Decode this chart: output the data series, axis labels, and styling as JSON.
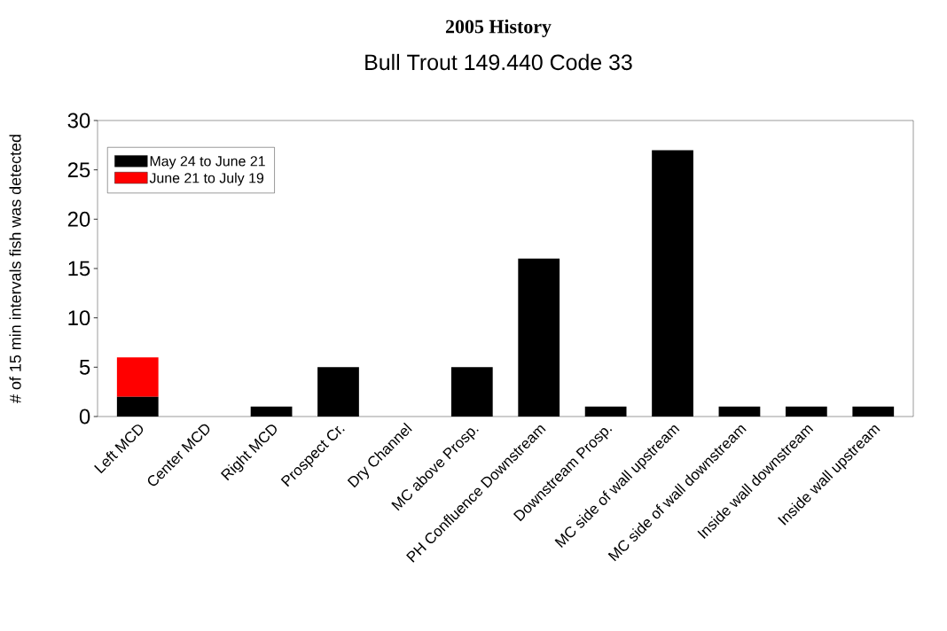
{
  "chart_data": {
    "type": "bar",
    "title": "2005 History",
    "subtitle": "Bull Trout 149.440 Code 33",
    "ylabel": "# of 15 min intervals fish was detected",
    "categories": [
      "Left MCD",
      "Center MCD",
      "Right MCD",
      "Prospect Cr.",
      "Dry Channel",
      "MC above Prosp.",
      "PH Confluence Downstream",
      "Downstream Prosp.",
      "MC side of wall upstream",
      "MC side of wall downstream",
      "Inside wall downstream",
      "Inside wall upstream"
    ],
    "series": [
      {
        "name": "May 24 to June 21",
        "color": "#000000",
        "values": [
          2,
          0,
          1,
          5,
          0,
          5,
          16,
          1,
          27,
          1,
          1,
          1
        ]
      },
      {
        "name": "June 21 to July 19",
        "color": "#ff0000",
        "values": [
          4,
          0,
          0,
          0,
          0,
          0,
          0,
          0,
          0,
          0,
          0,
          0
        ]
      }
    ],
    "stacked": true,
    "ylim": [
      0,
      30
    ],
    "yticks": [
      0,
      5,
      10,
      15,
      20,
      25,
      30
    ],
    "grid": false,
    "legend": "top left"
  }
}
